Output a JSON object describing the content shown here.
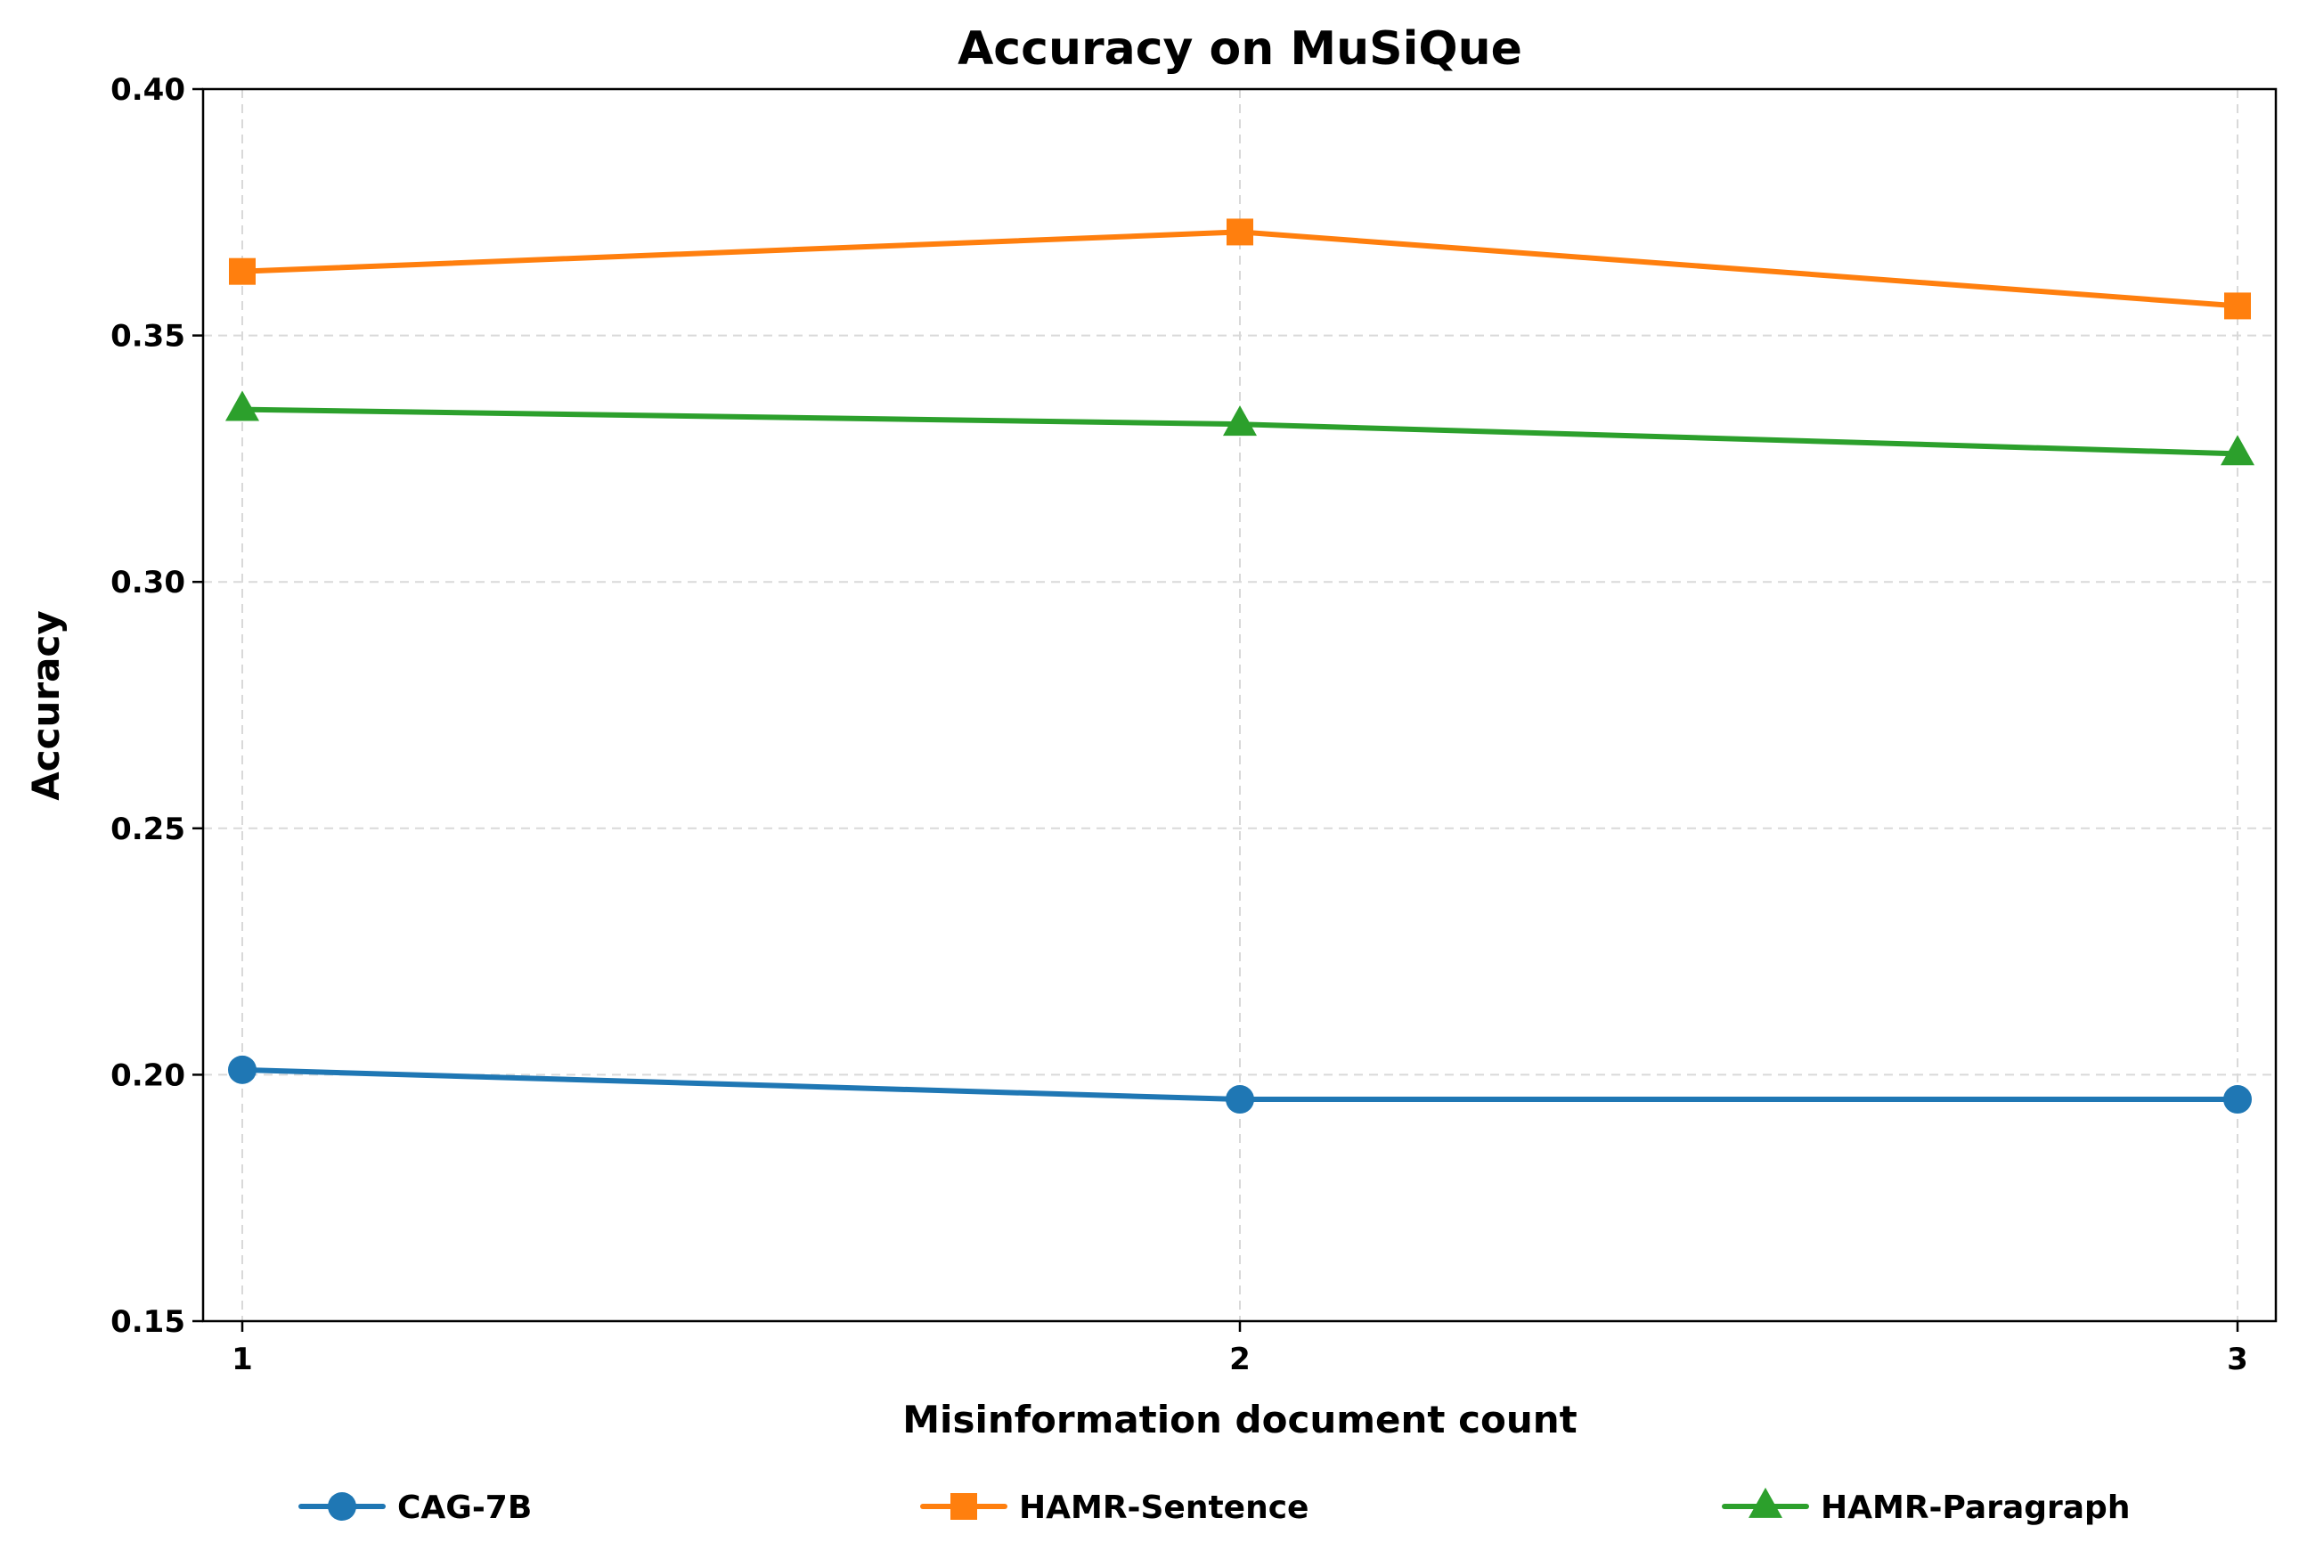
{
  "chart_data": {
    "type": "line",
    "title": "Accuracy on MuSiQue",
    "xlabel": "Misinformation document count",
    "ylabel": "Accuracy",
    "x": [
      1,
      2,
      3
    ],
    "x_tick_labels": [
      "1",
      "2",
      "3"
    ],
    "ylim": [
      0.15,
      0.4
    ],
    "y_ticks": [
      0.15,
      0.2,
      0.25,
      0.3,
      0.35,
      0.4
    ],
    "y_tick_labels": [
      "0.15",
      "0.20",
      "0.25",
      "0.30",
      "0.35",
      "0.40"
    ],
    "grid": true,
    "legend_position": "bottom",
    "series": [
      {
        "name": "CAG-7B",
        "values": [
          0.201,
          0.195,
          0.195
        ],
        "color": "#1f77b4",
        "marker": "circle"
      },
      {
        "name": "HAMR-Sentence",
        "values": [
          0.363,
          0.371,
          0.356
        ],
        "color": "#ff7f0e",
        "marker": "square"
      },
      {
        "name": "HAMR-Paragraph",
        "values": [
          0.335,
          0.332,
          0.326
        ],
        "color": "#2ca02c",
        "marker": "triangle"
      }
    ]
  }
}
